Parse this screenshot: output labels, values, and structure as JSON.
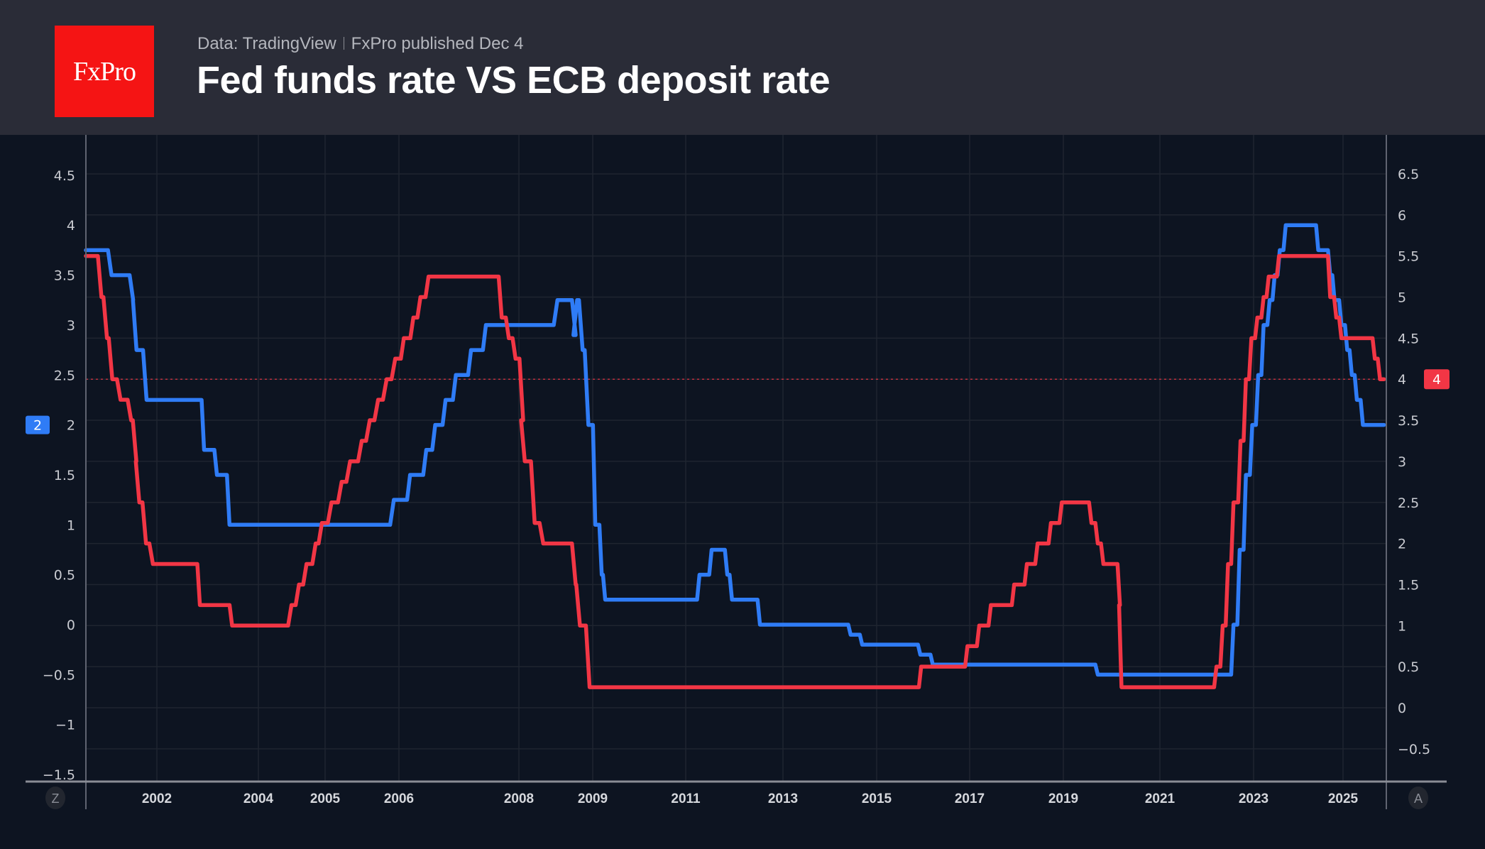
{
  "header": {
    "logo_text": "FxPro",
    "source": "Data: TradingView",
    "published": "FxPro published Dec 4",
    "title": "Fed funds rate VS ECB deposit rate"
  },
  "controls": {
    "left_button": "Z",
    "right_button": "A"
  },
  "colors": {
    "ecb": "#2f7cf6",
    "fed": "#f23645",
    "background": "#0d1421",
    "header": "#2a2c37",
    "logo": "#f51414"
  },
  "chart_data": {
    "type": "line",
    "grid": true,
    "x_ticks": [
      "2002",
      "2004",
      "2005",
      "2006",
      "2008",
      "2009",
      "2011",
      "2013",
      "2015",
      "2017",
      "2019",
      "2021",
      "2023",
      "2025"
    ],
    "left_axis": {
      "ticks": [
        "4.5",
        "4",
        "3.5",
        "3",
        "2.5",
        "2",
        "1.5",
        "1",
        "0.5",
        "0",
        "−0.5",
        "−1",
        "−1.5"
      ],
      "range": [
        -1.5,
        4.75
      ]
    },
    "right_axis": {
      "ticks": [
        "6.5",
        "6",
        "5.5",
        "5",
        "4.5",
        "4",
        "3.5",
        "3",
        "2.5",
        "2",
        "1.5",
        "1",
        "0.5",
        "0",
        "−0.5"
      ],
      "range": [
        -0.7,
        7.0
      ]
    },
    "last_value_labels": {
      "ecb": "2",
      "fed": "4"
    },
    "series": [
      {
        "key": "ecb",
        "axis": "left",
        "color": "#2f7cf6",
        "points": [
          [
            "2001-01-01",
            3.75
          ],
          [
            "2001-05-11",
            3.5
          ],
          [
            "2001-08-31",
            3.25
          ],
          [
            "2001-09-18",
            2.75
          ],
          [
            "2001-11-09",
            2.25
          ],
          [
            "2002-12-06",
            1.75
          ],
          [
            "2003-03-07",
            1.5
          ],
          [
            "2003-06-06",
            1.0
          ],
          [
            "2005-12-06",
            1.25
          ],
          [
            "2006-03-08",
            1.5
          ],
          [
            "2006-06-15",
            1.75
          ],
          [
            "2006-08-09",
            2.0
          ],
          [
            "2006-10-11",
            2.25
          ],
          [
            "2006-12-13",
            2.5
          ],
          [
            "2007-03-14",
            2.75
          ],
          [
            "2007-06-13",
            3.0
          ],
          [
            "2008-07-09",
            3.25
          ],
          [
            "2008-10-08",
            2.9
          ],
          [
            "2008-10-15",
            3.25
          ],
          [
            "2008-11-12",
            2.75
          ],
          [
            "2008-12-10",
            2.0
          ],
          [
            "2009-01-21",
            1.0
          ],
          [
            "2009-03-11",
            0.5
          ],
          [
            "2009-04-08",
            0.25
          ],
          [
            "2011-04-13",
            0.5
          ],
          [
            "2011-07-13",
            0.75
          ],
          [
            "2011-11-09",
            0.5
          ],
          [
            "2011-12-14",
            0.25
          ],
          [
            "2012-07-11",
            0.0
          ],
          [
            "2014-06-11",
            -0.1
          ],
          [
            "2014-09-10",
            -0.2
          ],
          [
            "2015-12-09",
            -0.3
          ],
          [
            "2016-03-16",
            -0.4
          ],
          [
            "2019-09-18",
            -0.5
          ],
          [
            "2022-07-27",
            0.0
          ],
          [
            "2022-09-14",
            0.75
          ],
          [
            "2022-11-02",
            1.5
          ],
          [
            "2022-12-21",
            2.0
          ],
          [
            "2023-02-08",
            2.5
          ],
          [
            "2023-03-22",
            3.0
          ],
          [
            "2023-05-10",
            3.25
          ],
          [
            "2023-06-21",
            3.5
          ],
          [
            "2023-08-02",
            3.75
          ],
          [
            "2023-09-20",
            4.0
          ],
          [
            "2024-06-12",
            3.75
          ],
          [
            "2024-09-18",
            3.5
          ],
          [
            "2024-10-23",
            3.25
          ],
          [
            "2024-12-18",
            3.0
          ],
          [
            "2025-02-05",
            2.75
          ],
          [
            "2025-03-12",
            2.5
          ],
          [
            "2025-04-23",
            2.25
          ],
          [
            "2025-06-11",
            2.0
          ],
          [
            "2025-12-01",
            2.0
          ]
        ]
      },
      {
        "key": "fed",
        "axis": "right",
        "color": "#f23645",
        "points": [
          [
            "2001-01-01",
            5.5
          ],
          [
            "2001-03-20",
            5.0
          ],
          [
            "2001-04-18",
            4.5
          ],
          [
            "2001-05-15",
            4.0
          ],
          [
            "2001-06-27",
            3.75
          ],
          [
            "2001-08-21",
            3.5
          ],
          [
            "2001-09-17",
            3.0
          ],
          [
            "2001-10-02",
            2.5
          ],
          [
            "2001-11-06",
            2.0
          ],
          [
            "2001-12-11",
            1.75
          ],
          [
            "2002-11-06",
            1.25
          ],
          [
            "2003-06-25",
            1.0
          ],
          [
            "2004-06-30",
            1.25
          ],
          [
            "2004-08-10",
            1.5
          ],
          [
            "2004-09-21",
            1.75
          ],
          [
            "2004-11-10",
            2.0
          ],
          [
            "2004-12-14",
            2.25
          ],
          [
            "2005-02-02",
            2.5
          ],
          [
            "2005-03-22",
            2.75
          ],
          [
            "2005-05-03",
            3.0
          ],
          [
            "2005-06-30",
            3.25
          ],
          [
            "2005-08-09",
            3.5
          ],
          [
            "2005-09-20",
            3.75
          ],
          [
            "2005-11-01",
            4.0
          ],
          [
            "2005-12-13",
            4.25
          ],
          [
            "2006-01-31",
            4.5
          ],
          [
            "2006-03-28",
            4.75
          ],
          [
            "2006-05-10",
            5.0
          ],
          [
            "2006-06-29",
            5.25
          ],
          [
            "2007-09-18",
            4.75
          ],
          [
            "2007-10-31",
            4.5
          ],
          [
            "2007-12-11",
            4.25
          ],
          [
            "2008-01-22",
            3.5
          ],
          [
            "2008-01-30",
            3.0
          ],
          [
            "2008-03-18",
            2.25
          ],
          [
            "2008-04-30",
            2.0
          ],
          [
            "2008-10-08",
            1.5
          ],
          [
            "2008-10-29",
            1.0
          ],
          [
            "2008-12-16",
            0.25
          ],
          [
            "2015-12-16",
            0.5
          ],
          [
            "2016-12-14",
            0.75
          ],
          [
            "2017-03-15",
            1.0
          ],
          [
            "2017-06-14",
            1.25
          ],
          [
            "2017-12-13",
            1.5
          ],
          [
            "2018-03-21",
            1.75
          ],
          [
            "2018-06-13",
            2.0
          ],
          [
            "2018-09-26",
            2.25
          ],
          [
            "2018-12-19",
            2.5
          ],
          [
            "2019-07-31",
            2.25
          ],
          [
            "2019-09-18",
            2.0
          ],
          [
            "2019-10-30",
            1.75
          ],
          [
            "2020-03-03",
            1.25
          ],
          [
            "2020-03-15",
            0.25
          ],
          [
            "2022-03-16",
            0.5
          ],
          [
            "2022-05-04",
            1.0
          ],
          [
            "2022-06-15",
            1.75
          ],
          [
            "2022-07-27",
            2.5
          ],
          [
            "2022-09-21",
            3.25
          ],
          [
            "2022-11-02",
            4.0
          ],
          [
            "2022-12-14",
            4.5
          ],
          [
            "2023-02-01",
            4.75
          ],
          [
            "2023-03-22",
            5.0
          ],
          [
            "2023-05-03",
            5.25
          ],
          [
            "2023-07-26",
            5.5
          ],
          [
            "2024-09-18",
            5.0
          ],
          [
            "2024-11-07",
            4.75
          ],
          [
            "2024-12-18",
            4.5
          ],
          [
            "2025-09-17",
            4.25
          ],
          [
            "2025-10-29",
            4.0
          ],
          [
            "2025-12-01",
            4.0
          ]
        ]
      }
    ]
  }
}
